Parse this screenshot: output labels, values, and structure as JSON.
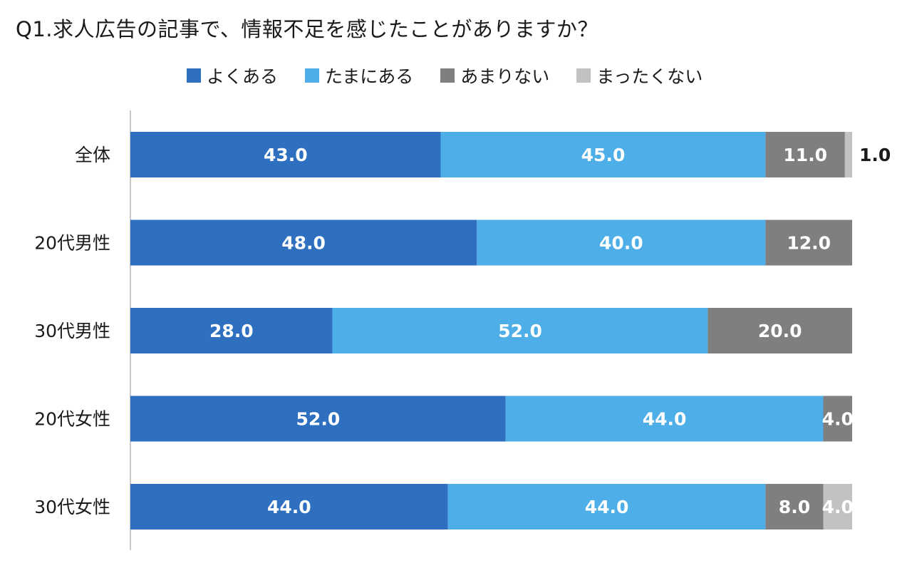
{
  "title": "Q1.求人広告の記事で、情報不足を感じたことがありますか？",
  "colors": {
    "axis": "#c8c8c8"
  },
  "chart_data": {
    "type": "bar",
    "orientation": "horizontal",
    "stacked": true,
    "percent_scale": true,
    "xlim": [
      0,
      100
    ],
    "grid": false,
    "legend_position": "top",
    "categories": [
      "全体",
      "20代男性",
      "30代男性",
      "20代女性",
      "30代女性"
    ],
    "series": [
      {
        "name": "よくある",
        "color": "#2e6fc0",
        "values": [
          43.0,
          48.0,
          28.0,
          52.0,
          44.0
        ]
      },
      {
        "name": "たまにある",
        "color": "#4daee8",
        "values": [
          45.0,
          40.0,
          52.0,
          44.0,
          44.0
        ]
      },
      {
        "name": "あまりない",
        "color": "#7f7f7f",
        "values": [
          11.0,
          12.0,
          20.0,
          4.0,
          8.0
        ]
      },
      {
        "name": "まったくない",
        "color": "#c2c2c2",
        "values": [
          1.0,
          0.0,
          0.0,
          0.0,
          4.0
        ]
      }
    ],
    "data_labels": [
      [
        "43.0",
        "45.0",
        "11.0",
        "1.0"
      ],
      [
        "48.0",
        "40.0",
        "12.0",
        ""
      ],
      [
        "28.0",
        "52.0",
        "20.0",
        ""
      ],
      [
        "52.0",
        "44.0",
        "4.0",
        ""
      ],
      [
        "44.0",
        "44.0",
        "8.0",
        "4.0"
      ]
    ]
  }
}
